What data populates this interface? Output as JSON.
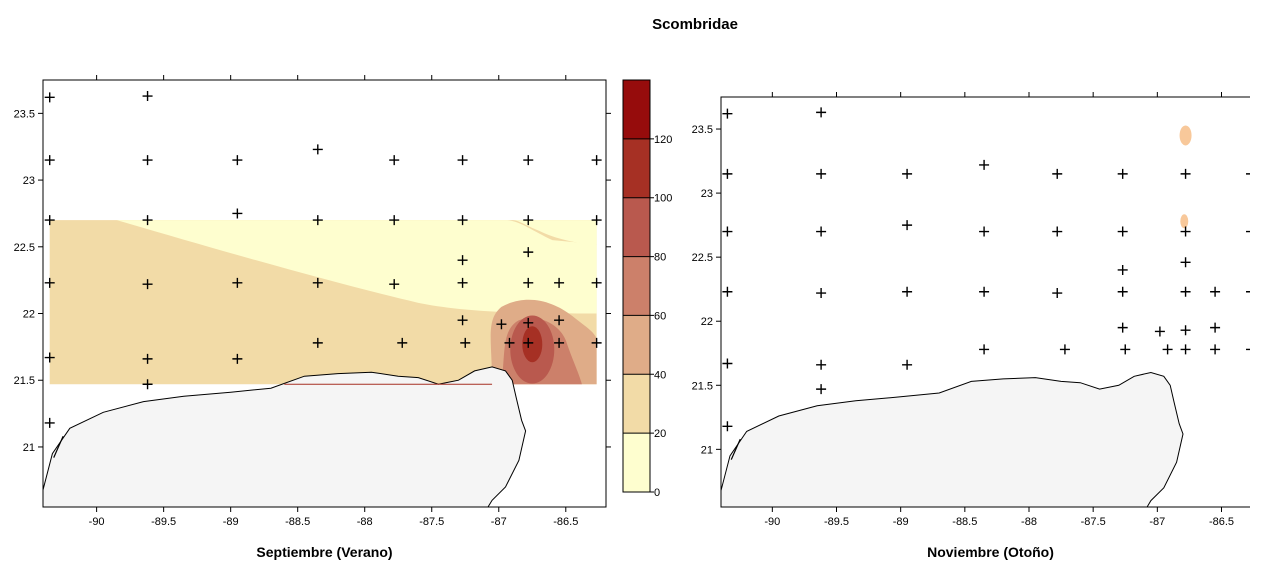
{
  "title": "Scombridae",
  "colorbar": {
    "ticks": [
      0,
      20,
      40,
      60,
      80,
      100,
      120
    ],
    "vmin": 0,
    "vmax": 140,
    "colors": [
      "#fefecf",
      "#f2dba7",
      "#dfac88",
      "#cc806a",
      "#b9594e",
      "#a63024",
      "#960c0c"
    ]
  },
  "coast_fill": "#f5f5f5",
  "chart_data": [
    {
      "type": "heatmap",
      "xlabel": "Septiembre (Verano)",
      "ylabel": "",
      "x_ticks": [
        -90,
        -89.5,
        -89,
        -88.5,
        -88,
        -87.5,
        -87,
        -86.5
      ],
      "y_ticks": [
        21,
        21.5,
        22,
        22.5,
        23,
        23.5
      ],
      "xlim": [
        -90.4,
        -86.2
      ],
      "ylim": [
        20.55,
        23.75
      ],
      "stations": [
        [
          -90.35,
          23.62
        ],
        [
          -89.62,
          23.63
        ],
        [
          -90.35,
          23.15
        ],
        [
          -89.62,
          23.15
        ],
        [
          -88.95,
          23.15
        ],
        [
          -88.35,
          23.23
        ],
        [
          -87.78,
          23.15
        ],
        [
          -87.27,
          23.15
        ],
        [
          -86.78,
          23.15
        ],
        [
          -86.27,
          23.15
        ],
        [
          -90.35,
          22.7
        ],
        [
          -89.62,
          22.7
        ],
        [
          -88.95,
          22.75
        ],
        [
          -88.35,
          22.7
        ],
        [
          -87.78,
          22.7
        ],
        [
          -87.27,
          22.7
        ],
        [
          -86.78,
          22.7
        ],
        [
          -86.27,
          22.7
        ],
        [
          -87.27,
          22.4
        ],
        [
          -86.78,
          22.46
        ],
        [
          -90.35,
          22.23
        ],
        [
          -89.62,
          22.22
        ],
        [
          -88.95,
          22.23
        ],
        [
          -88.35,
          22.23
        ],
        [
          -87.78,
          22.22
        ],
        [
          -87.27,
          22.23
        ],
        [
          -86.78,
          22.23
        ],
        [
          -86.55,
          22.23
        ],
        [
          -86.27,
          22.23
        ],
        [
          -87.27,
          21.95
        ],
        [
          -86.78,
          21.93
        ],
        [
          -86.55,
          21.95
        ],
        [
          -86.98,
          21.92
        ],
        [
          -90.35,
          21.67
        ],
        [
          -89.62,
          21.66
        ],
        [
          -88.95,
          21.66
        ],
        [
          -88.35,
          21.78
        ],
        [
          -87.72,
          21.78
        ],
        [
          -87.25,
          21.78
        ],
        [
          -86.92,
          21.78
        ],
        [
          -86.78,
          21.78
        ],
        [
          -86.55,
          21.78
        ],
        [
          -86.27,
          21.78
        ],
        [
          -89.62,
          21.47
        ],
        [
          -90.35,
          21.18
        ]
      ],
      "contour_levels": [
        {
          "level": 0,
          "color": "#fefecf"
        },
        {
          "level": 20,
          "color": "#f2dba7"
        },
        {
          "level": 40,
          "color": "#dfac88"
        },
        {
          "level": 60,
          "color": "#cc806a"
        },
        {
          "level": 80,
          "color": "#b9594e"
        },
        {
          "level": 100,
          "color": "#a63024"
        }
      ]
    },
    {
      "type": "heatmap",
      "xlabel": "Noviembre (Otoño)",
      "ylabel": "",
      "x_ticks": [
        -90,
        -89.5,
        -89,
        -88.5,
        -88,
        -87.5,
        -87,
        -86.5
      ],
      "y_ticks": [
        21,
        21.5,
        22,
        22.5,
        23,
        23.5
      ],
      "xlim": [
        -90.4,
        -86.2
      ],
      "ylim": [
        20.55,
        23.75
      ],
      "stations": [
        [
          -90.35,
          23.62
        ],
        [
          -89.62,
          23.63
        ],
        [
          -90.35,
          23.15
        ],
        [
          -89.62,
          23.15
        ],
        [
          -88.95,
          23.15
        ],
        [
          -88.35,
          23.22
        ],
        [
          -87.78,
          23.15
        ],
        [
          -87.27,
          23.15
        ],
        [
          -86.78,
          23.15
        ],
        [
          -86.27,
          23.15
        ],
        [
          -90.35,
          22.7
        ],
        [
          -89.62,
          22.7
        ],
        [
          -88.95,
          22.75
        ],
        [
          -88.35,
          22.7
        ],
        [
          -87.78,
          22.7
        ],
        [
          -87.27,
          22.7
        ],
        [
          -86.78,
          22.7
        ],
        [
          -86.27,
          22.7
        ],
        [
          -87.27,
          22.4
        ],
        [
          -86.78,
          22.46
        ],
        [
          -90.35,
          22.23
        ],
        [
          -89.62,
          22.22
        ],
        [
          -88.95,
          22.23
        ],
        [
          -88.35,
          22.23
        ],
        [
          -87.78,
          22.22
        ],
        [
          -87.27,
          22.23
        ],
        [
          -86.78,
          22.23
        ],
        [
          -86.55,
          22.23
        ],
        [
          -86.27,
          22.23
        ],
        [
          -87.27,
          21.95
        ],
        [
          -86.98,
          21.92
        ],
        [
          -86.78,
          21.93
        ],
        [
          -86.55,
          21.95
        ],
        [
          -90.35,
          21.67
        ],
        [
          -89.62,
          21.66
        ],
        [
          -88.95,
          21.66
        ],
        [
          -88.35,
          21.78
        ],
        [
          -87.72,
          21.78
        ],
        [
          -87.25,
          21.78
        ],
        [
          -86.92,
          21.78
        ],
        [
          -86.78,
          21.78
        ],
        [
          -86.55,
          21.78
        ],
        [
          -86.27,
          21.78
        ],
        [
          -89.62,
          21.47
        ],
        [
          -90.35,
          21.18
        ]
      ],
      "patches": [
        {
          "lon": -86.78,
          "lat": 23.45,
          "level": 20
        },
        {
          "lon": -86.79,
          "lat": 22.78,
          "level": 20
        }
      ]
    }
  ]
}
